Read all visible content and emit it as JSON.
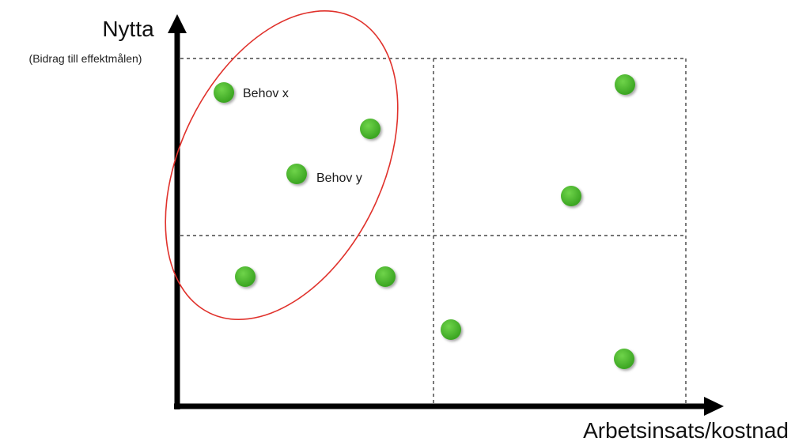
{
  "diagram": {
    "y_axis_title": "Nytta",
    "y_axis_subtitle": "(Bidrag till effektmålen)",
    "x_axis_title": "Arbetsinsats/kostnad",
    "point_color": "#43b02a",
    "highlight_color": "#e0312b",
    "points": [
      {
        "name": "Behov x",
        "label": "Behov x"
      },
      {
        "name": "point-2",
        "label": ""
      },
      {
        "name": "Behov y",
        "label": "Behov y"
      },
      {
        "name": "point-4",
        "label": ""
      },
      {
        "name": "point-5",
        "label": ""
      },
      {
        "name": "point-6",
        "label": ""
      },
      {
        "name": "point-7",
        "label": ""
      },
      {
        "name": "point-8",
        "label": ""
      },
      {
        "name": "point-9",
        "label": ""
      }
    ]
  }
}
